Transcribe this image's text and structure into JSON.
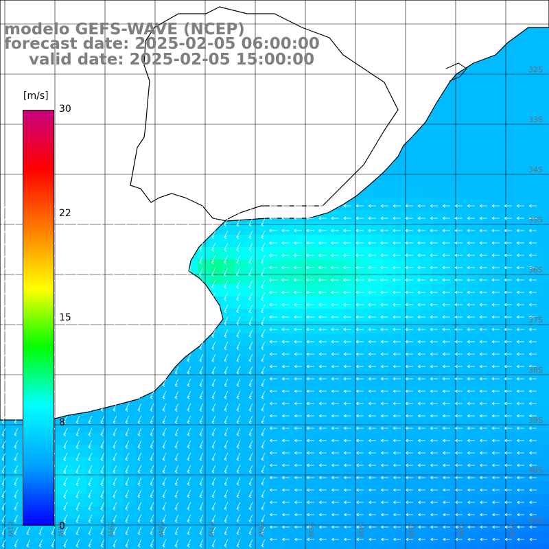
{
  "header": {
    "model": "modelo GEFS-WAVE (NCEP)",
    "forecast": "forecast date: 2025-02-05 06:00:00",
    "valid": "valid date: 2025-02-05 15:00:00"
  },
  "colorbar": {
    "unit": "[m/s]",
    "ticks": [
      "30",
      "22",
      "15",
      "8",
      "0"
    ],
    "range": [
      0,
      30
    ],
    "colors": [
      "#0000ff",
      "#00a0ff",
      "#00ffff",
      "#00ff00",
      "#ffff00",
      "#ff8000",
      "#ff0000",
      "#c80080"
    ]
  },
  "lat_labels": [
    "32S",
    "33S",
    "34S",
    "35S",
    "36S",
    "37S",
    "38S",
    "39S",
    "40S",
    "41S"
  ],
  "lon_labels": [
    "61W",
    "60W",
    "59W",
    "58W",
    "57W",
    "56W",
    "55W",
    "54W",
    "53W",
    "52W",
    "51W"
  ],
  "palette": {
    "land": "#ffffff",
    "grid": "#000000",
    "coast": "#000000",
    "arrow": "#ffffff",
    "title_text": "#7f7f7f"
  }
}
